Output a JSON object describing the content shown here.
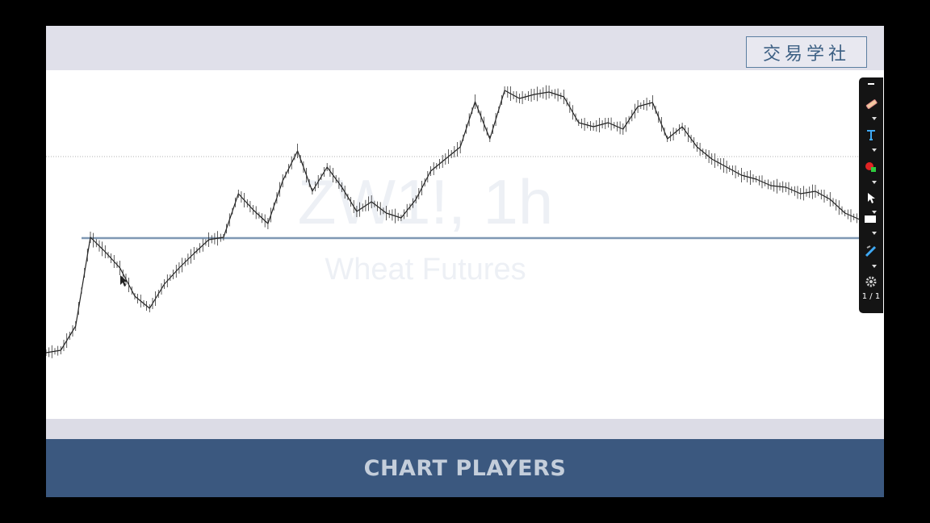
{
  "brand": {
    "label": "交易学社"
  },
  "watermark": {
    "symbol": "ZW1!, 1h",
    "description": "Wheat Futures"
  },
  "footer": {
    "title": "CHART PLAYERS"
  },
  "toolbar": {
    "items": [
      {
        "icon": "minus-icon"
      },
      {
        "icon": "highlighter-icon"
      },
      {
        "icon": "text-tool-icon"
      },
      {
        "icon": "color-picker-icon"
      },
      {
        "icon": "cursor-icon"
      },
      {
        "icon": "rectangle-icon"
      },
      {
        "icon": "line-tool-icon"
      },
      {
        "icon": "gear-icon"
      }
    ],
    "page_indicator": "1 / 1"
  },
  "colors": {
    "footer_bg": "#3b587f",
    "brand_border": "#5b7ea1",
    "horizontal_level": "#7f98b3",
    "price_line": "#222222"
  },
  "chart_data": {
    "type": "line",
    "title": "ZW1!, 1h",
    "subtitle": "Wheat Futures",
    "price_path": [
      405,
      402,
      372,
      262,
      280,
      300,
      335,
      350,
      320,
      300,
      282,
      265,
      262,
      208,
      228,
      245,
      192,
      155,
      205,
      175,
      200,
      230,
      218,
      232,
      238,
      215,
      180,
      165,
      150,
      94,
      140,
      80,
      90,
      85,
      82,
      88,
      120,
      125,
      120,
      128,
      100,
      95,
      140,
      125,
      150,
      165,
      175,
      185,
      190,
      198,
      200,
      208,
      205,
      215,
      232,
      240
    ],
    "horizontal_levels": [
      "support/resistance level",
      "dotted reference level"
    ],
    "grid": false,
    "legend": "none"
  }
}
